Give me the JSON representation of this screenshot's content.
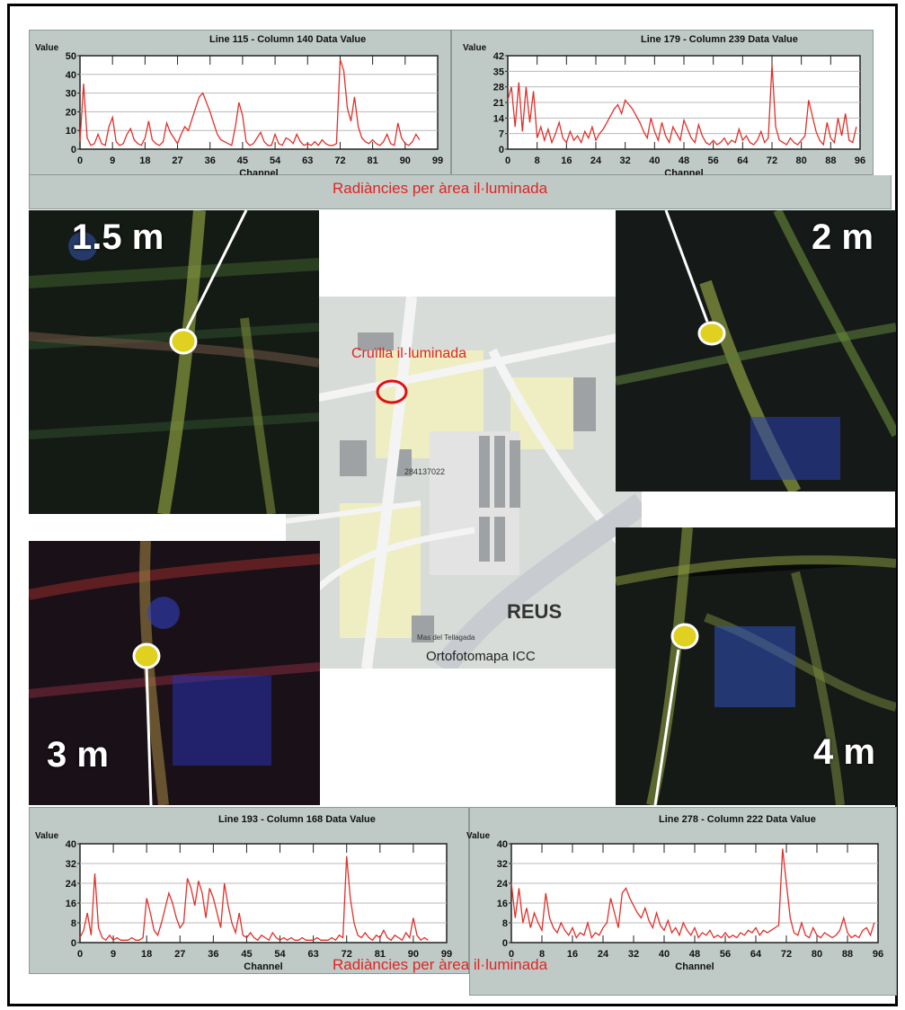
{
  "captions": {
    "top_radiance": "Radiàncies per àrea il·luminada",
    "bottom_radiance": "Radiàncies per àrea il·luminada"
  },
  "images": {
    "tl_label": "1.5 m",
    "tr_label": "2 m",
    "bl_label": "3 m",
    "br_label": "4 m"
  },
  "map": {
    "crossing_label": "Cruïlla il·luminada",
    "city_label": "REUS",
    "source_label": "Ortofotomapa ICC",
    "code_label": "284137022",
    "small_label": "Mas del Tellagada"
  },
  "colors": {
    "panel_bg": "#bfcac6",
    "line": "#e0302a",
    "caption_red": "#e02424",
    "marker": "#ffffff",
    "crossing_marker": "#e01010"
  },
  "chart_data": [
    {
      "type": "line",
      "title": "Line 115 - Column 140 Data Value",
      "ylabel": "Value",
      "xlabel": "Channel",
      "ylim": [
        0,
        50
      ],
      "yticks": [
        0,
        10,
        20,
        30,
        40,
        50
      ],
      "xlim": [
        0,
        99
      ],
      "xticks": [
        0,
        9,
        18,
        27,
        36,
        45,
        54,
        63,
        72,
        81,
        90,
        99
      ],
      "series": [
        {
          "x": [
            0,
            1,
            2,
            3,
            4,
            5,
            6,
            7,
            8,
            9,
            10,
            11,
            12,
            13,
            14,
            15,
            16,
            17,
            18,
            19,
            20,
            21,
            22,
            23,
            24,
            25,
            26,
            27,
            28,
            29,
            30,
            31,
            32,
            33,
            34,
            35,
            36,
            37,
            38,
            39,
            40,
            41,
            42,
            43,
            44,
            45,
            46,
            47,
            48,
            49,
            50,
            51,
            52,
            53,
            54,
            55,
            56,
            57,
            58,
            59,
            60,
            61,
            62,
            63,
            64,
            65,
            66,
            67,
            68,
            69,
            70,
            71,
            72,
            73,
            74,
            75,
            76,
            77,
            78,
            79,
            80,
            81,
            82,
            83,
            84,
            85,
            86,
            87,
            88,
            89,
            90,
            91,
            92,
            93,
            94
          ],
          "values": [
            4,
            35,
            6,
            2,
            3,
            8,
            3,
            2,
            12,
            17,
            4,
            2,
            3,
            8,
            11,
            5,
            3,
            2,
            6,
            15,
            5,
            3,
            2,
            4,
            14,
            9,
            6,
            3,
            8,
            12,
            10,
            16,
            22,
            28,
            30,
            25,
            20,
            14,
            8,
            5,
            4,
            3,
            2,
            12,
            25,
            18,
            4,
            2,
            3,
            6,
            9,
            4,
            2,
            2,
            8,
            3,
            2,
            6,
            5,
            3,
            8,
            4,
            2,
            3,
            2,
            4,
            2,
            5,
            3,
            2,
            2,
            3,
            48,
            42,
            22,
            15,
            28,
            12,
            6,
            4,
            3,
            5,
            3,
            2,
            4,
            8,
            3,
            2,
            14,
            6,
            3,
            2,
            4,
            8,
            5
          ]
        }
      ]
    },
    {
      "type": "line",
      "title": "Line 179 - Column 239 Data Value",
      "ylabel": "Value",
      "xlabel": "Channel",
      "ylim": [
        0,
        42
      ],
      "yticks": [
        0,
        7,
        14,
        21,
        28,
        35,
        42
      ],
      "xlim": [
        0,
        96
      ],
      "xticks": [
        0,
        8,
        16,
        24,
        32,
        40,
        48,
        56,
        64,
        72,
        80,
        88,
        96
      ],
      "series": [
        {
          "x": [
            0,
            1,
            2,
            3,
            4,
            5,
            6,
            7,
            8,
            9,
            10,
            11,
            12,
            13,
            14,
            15,
            16,
            17,
            18,
            19,
            20,
            21,
            22,
            23,
            24,
            25,
            26,
            27,
            28,
            29,
            30,
            31,
            32,
            33,
            34,
            35,
            36,
            37,
            38,
            39,
            40,
            41,
            42,
            43,
            44,
            45,
            46,
            47,
            48,
            49,
            50,
            51,
            52,
            53,
            54,
            55,
            56,
            57,
            58,
            59,
            60,
            61,
            62,
            63,
            64,
            65,
            66,
            67,
            68,
            69,
            70,
            71,
            72,
            73,
            74,
            75,
            76,
            77,
            78,
            79,
            80,
            81,
            82,
            83,
            84,
            85,
            86,
            87,
            88,
            89,
            90,
            91,
            92,
            93,
            94,
            95
          ],
          "values": [
            22,
            28,
            10,
            30,
            8,
            28,
            12,
            26,
            5,
            10,
            4,
            9,
            3,
            7,
            12,
            5,
            3,
            8,
            4,
            6,
            3,
            8,
            5,
            10,
            4,
            7,
            9,
            12,
            15,
            18,
            20,
            16,
            22,
            20,
            18,
            15,
            12,
            8,
            5,
            14,
            8,
            4,
            12,
            6,
            3,
            10,
            7,
            4,
            13,
            9,
            5,
            3,
            11,
            6,
            3,
            2,
            4,
            2,
            3,
            5,
            2,
            4,
            3,
            9,
            4,
            6,
            3,
            2,
            4,
            8,
            3,
            5,
            38,
            10,
            4,
            3,
            2,
            5,
            3,
            2,
            4,
            6,
            22,
            15,
            8,
            4,
            2,
            12,
            5,
            3,
            14,
            6,
            16,
            4,
            3,
            10
          ]
        }
      ]
    },
    {
      "type": "line",
      "title": "Line 193 - Column 168 Data Value",
      "ylabel": "Value",
      "xlabel": "Channel",
      "ylim": [
        0,
        40
      ],
      "yticks": [
        0,
        8,
        16,
        24,
        32,
        40
      ],
      "xlim": [
        0,
        99
      ],
      "xticks": [
        0,
        9,
        18,
        27,
        36,
        45,
        54,
        63,
        72,
        81,
        90,
        99
      ],
      "series": [
        {
          "x": [
            0,
            1,
            2,
            3,
            4,
            5,
            6,
            7,
            8,
            9,
            10,
            11,
            12,
            13,
            14,
            15,
            16,
            17,
            18,
            19,
            20,
            21,
            22,
            23,
            24,
            25,
            26,
            27,
            28,
            29,
            30,
            31,
            32,
            33,
            34,
            35,
            36,
            37,
            38,
            39,
            40,
            41,
            42,
            43,
            44,
            45,
            46,
            47,
            48,
            49,
            50,
            51,
            52,
            53,
            54,
            55,
            56,
            57,
            58,
            59,
            60,
            61,
            62,
            63,
            64,
            65,
            66,
            67,
            68,
            69,
            70,
            71,
            72,
            73,
            74,
            75,
            76,
            77,
            78,
            79,
            80,
            81,
            82,
            83,
            84,
            85,
            86,
            87,
            88,
            89,
            90,
            91,
            92,
            93,
            94
          ],
          "values": [
            2,
            5,
            12,
            3,
            28,
            6,
            2,
            1,
            3,
            1,
            2,
            1,
            1,
            1,
            2,
            1,
            1,
            2,
            18,
            12,
            5,
            3,
            8,
            14,
            20,
            16,
            10,
            6,
            8,
            26,
            22,
            15,
            25,
            20,
            10,
            22,
            18,
            12,
            6,
            24,
            15,
            8,
            4,
            12,
            3,
            2,
            4,
            2,
            1,
            3,
            2,
            1,
            4,
            2,
            1,
            2,
            1,
            2,
            1,
            1,
            2,
            1,
            1,
            1,
            2,
            1,
            1,
            1,
            2,
            1,
            3,
            2,
            35,
            18,
            8,
            3,
            2,
            4,
            2,
            1,
            3,
            2,
            5,
            2,
            1,
            3,
            2,
            1,
            4,
            2,
            10,
            3,
            1,
            2,
            1
          ]
        }
      ]
    },
    {
      "type": "line",
      "title": "Line 278 - Column 222 Data Value",
      "ylabel": "Value",
      "xlabel": "Channel",
      "ylim": [
        0,
        40
      ],
      "yticks": [
        0,
        8,
        16,
        24,
        32,
        40
      ],
      "xlim": [
        0,
        96
      ],
      "xticks": [
        0,
        8,
        16,
        24,
        32,
        40,
        48,
        56,
        64,
        72,
        80,
        88,
        96
      ],
      "series": [
        {
          "x": [
            0,
            1,
            2,
            3,
            4,
            5,
            6,
            7,
            8,
            9,
            10,
            11,
            12,
            13,
            14,
            15,
            16,
            17,
            18,
            19,
            20,
            21,
            22,
            23,
            24,
            25,
            26,
            27,
            28,
            29,
            30,
            31,
            32,
            33,
            34,
            35,
            36,
            37,
            38,
            39,
            40,
            41,
            42,
            43,
            44,
            45,
            46,
            47,
            48,
            49,
            50,
            51,
            52,
            53,
            54,
            55,
            56,
            57,
            58,
            59,
            60,
            61,
            62,
            63,
            64,
            65,
            66,
            67,
            68,
            69,
            70,
            71,
            72,
            73,
            74,
            75,
            76,
            77,
            78,
            79,
            80,
            81,
            82,
            83,
            84,
            85,
            86,
            87,
            88,
            89,
            90,
            91,
            92,
            93,
            94,
            95
          ],
          "values": [
            24,
            10,
            22,
            8,
            14,
            6,
            12,
            8,
            5,
            20,
            10,
            6,
            4,
            8,
            5,
            3,
            6,
            2,
            4,
            3,
            8,
            2,
            4,
            3,
            6,
            8,
            18,
            12,
            6,
            20,
            22,
            18,
            15,
            12,
            10,
            14,
            9,
            6,
            12,
            7,
            5,
            9,
            4,
            6,
            3,
            8,
            5,
            3,
            6,
            2,
            4,
            3,
            5,
            2,
            3,
            2,
            4,
            2,
            3,
            2,
            4,
            3,
            5,
            4,
            6,
            3,
            5,
            4,
            5,
            6,
            7,
            38,
            24,
            10,
            4,
            3,
            8,
            3,
            2,
            6,
            3,
            2,
            4,
            3,
            2,
            3,
            5,
            10,
            4,
            2,
            3,
            2,
            5,
            6,
            3,
            8
          ]
        }
      ]
    }
  ]
}
